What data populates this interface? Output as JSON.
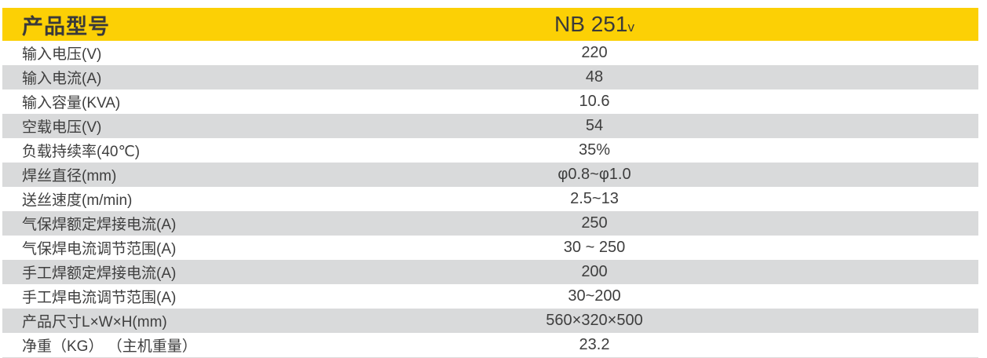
{
  "table": {
    "header": {
      "label": "产品型号",
      "model": "NB 251",
      "model_suffix": "v"
    },
    "rows": [
      {
        "label": "输入电压(V)",
        "value": "220"
      },
      {
        "label": "输入电流(A)",
        "value": "48"
      },
      {
        "label": "输入容量(KVA)",
        "value": "10.6"
      },
      {
        "label": "空载电压(V)",
        "value": "54"
      },
      {
        "label": "负载持续率(40℃)",
        "value": "35%"
      },
      {
        "label": "焊丝直径(mm)",
        "value": "φ0.8~φ1.0"
      },
      {
        "label": "送丝速度(m/min)",
        "value": "2.5~13"
      },
      {
        "label": "气保焊额定焊接电流(A)",
        "value": "250"
      },
      {
        "label": "气保焊电流调节范围(A)",
        "value": "30 ~ 250"
      },
      {
        "label": "手工焊额定焊接电流(A)",
        "value": "200"
      },
      {
        "label": "手工焊电流调节范围(A)",
        "value": "30~200"
      },
      {
        "label": "产品尺寸L×W×H(mm)",
        "value": "560×320×500"
      },
      {
        "label": "净重（KG） （主机重量）",
        "value": "23.2"
      }
    ],
    "colors": {
      "header_bg": "#FCD005",
      "row_alt_bg": "#D9DADB",
      "text": "#3E3E3E"
    }
  }
}
